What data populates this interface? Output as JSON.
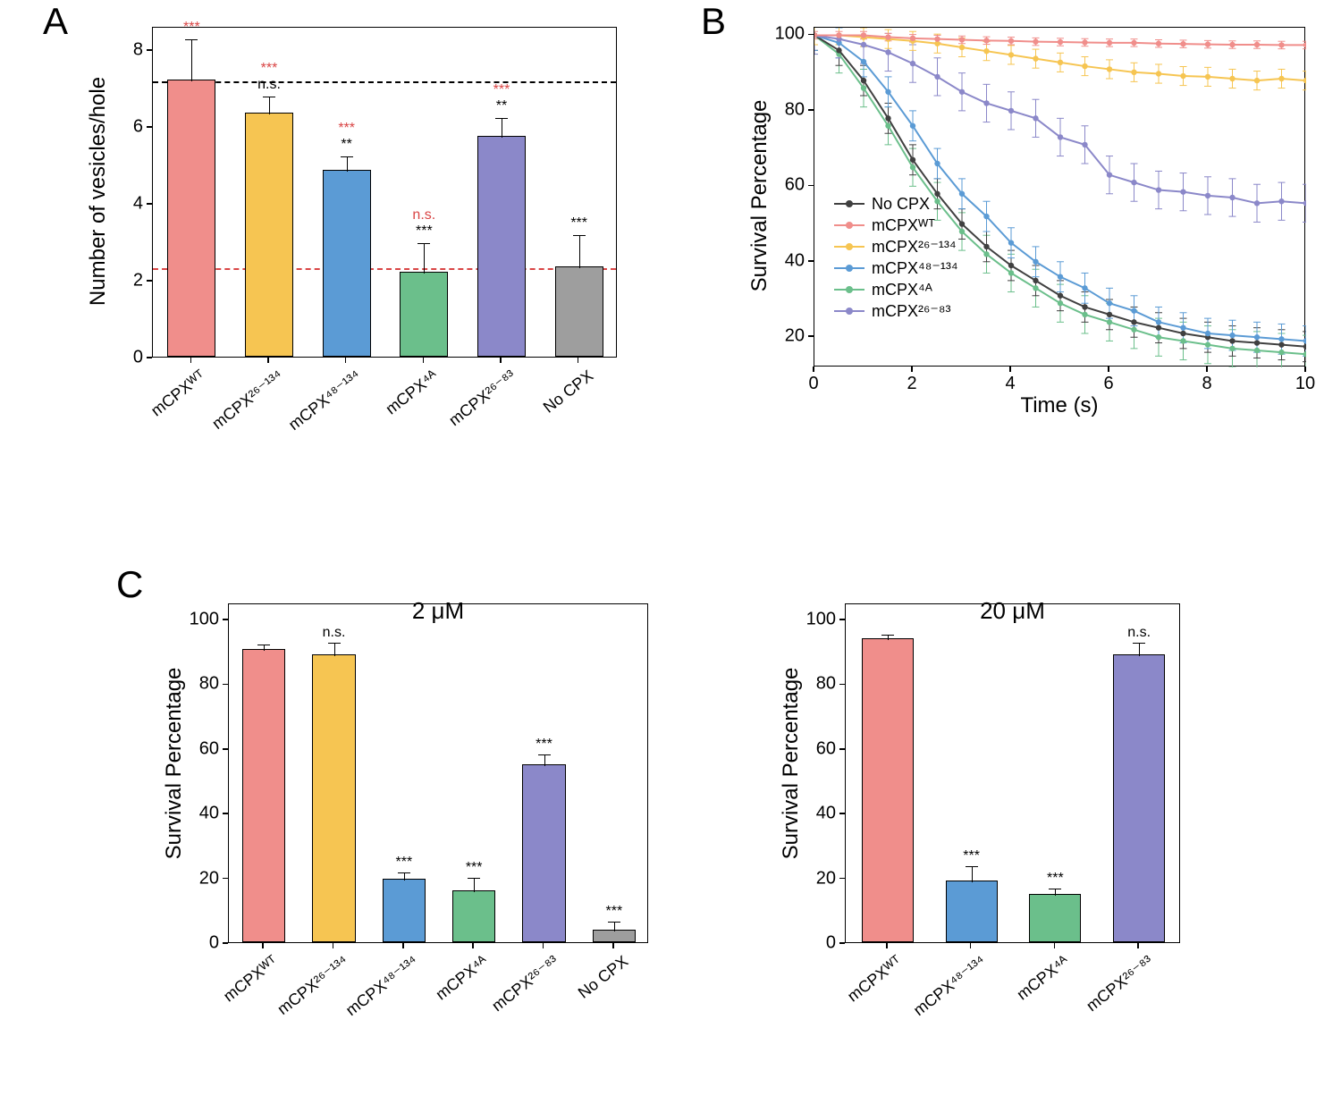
{
  "colors": {
    "WT": "#f08e8b",
    "c26_134": "#f6c552",
    "c48_134": "#5b9bd5",
    "c4A": "#6bbf8b",
    "c26_83": "#8b88c9",
    "NoCPX": "#9e9e9e",
    "NoCPX_line": "#404040",
    "axis": "#000000",
    "dash_black": "#000000",
    "dash_red": "#d94545",
    "sig_red": "#d94545",
    "sig_black": "#000000",
    "bg": "#ffffff"
  },
  "labels": {
    "WT": "mCPXᵂᵀ",
    "c26_134": "mCPX²⁶⁻¹³⁴",
    "c48_134": "mCPX⁴⁸⁻¹³⁴",
    "c4A": "mCPX⁴ᴬ",
    "c26_83": "mCPX²⁶⁻⁸³",
    "NoCPX": "No CPX"
  },
  "panelA": {
    "label": "A",
    "ylabel": "Number of vesicles/hole",
    "ylim": [
      0,
      8.6
    ],
    "yticks": [
      0,
      2,
      4,
      6,
      8
    ],
    "dash_black_at": 7.2,
    "dash_red_at": 2.35,
    "bars": [
      {
        "key": "WT",
        "value": 7.2,
        "err": 1.1,
        "sig_red": "***",
        "sig_black": ""
      },
      {
        "key": "c26_134",
        "value": 6.35,
        "err": 0.45,
        "sig_red": "***",
        "sig_black": "n.s."
      },
      {
        "key": "c48_134",
        "value": 4.85,
        "err": 0.4,
        "sig_red": "***",
        "sig_black": "**"
      },
      {
        "key": "c4A",
        "value": 2.2,
        "err": 0.8,
        "sig_red": "n.s.",
        "sig_black": "***"
      },
      {
        "key": "c26_83",
        "value": 5.75,
        "err": 0.5,
        "sig_red": "***",
        "sig_black": "**"
      },
      {
        "key": "NoCPX",
        "value": 2.35,
        "err": 0.85,
        "sig_red": "",
        "sig_black": "***"
      }
    ]
  },
  "panelB": {
    "label": "B",
    "xlabel": "Time (s)",
    "ylabel": "Survival Percentage",
    "xlim": [
      0,
      10
    ],
    "ylim": [
      12,
      102
    ],
    "xticks": [
      0,
      2,
      4,
      6,
      8,
      10
    ],
    "yticks": [
      20,
      40,
      60,
      80,
      100
    ],
    "legend_order": [
      "NoCPX",
      "WT",
      "c26_134",
      "c48_134",
      "c4A",
      "c26_83"
    ],
    "series": {
      "WT": {
        "color_key": "WT",
        "err": 1.0,
        "points": [
          [
            0,
            100
          ],
          [
            0.5,
            100
          ],
          [
            1,
            100
          ],
          [
            1.5,
            99.5
          ],
          [
            2,
            99.2
          ],
          [
            2.5,
            99.0
          ],
          [
            3,
            98.8
          ],
          [
            3.5,
            98.6
          ],
          [
            4,
            98.5
          ],
          [
            4.5,
            98.3
          ],
          [
            5,
            98.2
          ],
          [
            5.5,
            98.1
          ],
          [
            6,
            98.0
          ],
          [
            6.5,
            98.0
          ],
          [
            7,
            97.8
          ],
          [
            7.5,
            97.7
          ],
          [
            8,
            97.6
          ],
          [
            8.5,
            97.5
          ],
          [
            9,
            97.5
          ],
          [
            9.5,
            97.4
          ],
          [
            10,
            97.4
          ]
        ]
      },
      "c26_134": {
        "color_key": "c26_134",
        "err": 2.5,
        "points": [
          [
            0,
            100
          ],
          [
            0.5,
            100
          ],
          [
            1,
            99.5
          ],
          [
            1.5,
            99.0
          ],
          [
            2,
            98.5
          ],
          [
            2.5,
            97.8
          ],
          [
            3,
            96.8
          ],
          [
            3.5,
            95.8
          ],
          [
            4,
            94.8
          ],
          [
            4.5,
            93.8
          ],
          [
            5,
            92.8
          ],
          [
            5.5,
            91.8
          ],
          [
            6,
            91.0
          ],
          [
            6.5,
            90.2
          ],
          [
            7,
            89.8
          ],
          [
            7.5,
            89.2
          ],
          [
            8,
            89.0
          ],
          [
            8.5,
            88.5
          ],
          [
            9,
            88.0
          ],
          [
            9.5,
            88.5
          ],
          [
            10,
            88.0
          ]
        ]
      },
      "c26_83": {
        "color_key": "c26_83",
        "err": 5.0,
        "points": [
          [
            0,
            100
          ],
          [
            0.5,
            99
          ],
          [
            1,
            97.5
          ],
          [
            1.5,
            95.5
          ],
          [
            2,
            92.5
          ],
          [
            2.5,
            89.0
          ],
          [
            3,
            85.0
          ],
          [
            3.5,
            82.0
          ],
          [
            4,
            80.0
          ],
          [
            4.5,
            78.0
          ],
          [
            5,
            73.0
          ],
          [
            5.5,
            71.0
          ],
          [
            6,
            63.0
          ],
          [
            6.5,
            61.0
          ],
          [
            7,
            59.0
          ],
          [
            7.5,
            58.5
          ],
          [
            8,
            57.5
          ],
          [
            8.5,
            57.0
          ],
          [
            9,
            55.5
          ],
          [
            9.5,
            56.0
          ],
          [
            10,
            55.5
          ]
        ]
      },
      "c48_134": {
        "color_key": "c48_134",
        "err": 4.0,
        "points": [
          [
            0,
            100
          ],
          [
            0.5,
            98
          ],
          [
            1,
            93
          ],
          [
            1.5,
            85
          ],
          [
            2,
            76
          ],
          [
            2.5,
            66
          ],
          [
            3,
            58
          ],
          [
            3.5,
            52
          ],
          [
            4,
            45
          ],
          [
            4.5,
            40
          ],
          [
            5,
            36
          ],
          [
            5.5,
            33
          ],
          [
            6,
            29
          ],
          [
            6.5,
            27
          ],
          [
            7,
            24
          ],
          [
            7.5,
            22.5
          ],
          [
            8,
            21
          ],
          [
            8.5,
            20.5
          ],
          [
            9,
            20
          ],
          [
            9.5,
            19.5
          ],
          [
            10,
            19
          ]
        ]
      },
      "NoCPX": {
        "color_key": "NoCPX_line",
        "err": 4.0,
        "points": [
          [
            0,
            100
          ],
          [
            0.5,
            96
          ],
          [
            1,
            88
          ],
          [
            1.5,
            78
          ],
          [
            2,
            67
          ],
          [
            2.5,
            58
          ],
          [
            3,
            50
          ],
          [
            3.5,
            44
          ],
          [
            4,
            39
          ],
          [
            4.5,
            35
          ],
          [
            5,
            31
          ],
          [
            5.5,
            28
          ],
          [
            6,
            26
          ],
          [
            6.5,
            24
          ],
          [
            7,
            22.5
          ],
          [
            7.5,
            21
          ],
          [
            8,
            20
          ],
          [
            8.5,
            19
          ],
          [
            9,
            18.5
          ],
          [
            9.5,
            18
          ],
          [
            10,
            17.5
          ]
        ]
      },
      "c4A": {
        "color_key": "c4A",
        "err": 5.0,
        "points": [
          [
            0,
            100
          ],
          [
            0.5,
            95
          ],
          [
            1,
            86
          ],
          [
            1.5,
            76
          ],
          [
            2,
            65
          ],
          [
            2.5,
            56
          ],
          [
            3,
            48
          ],
          [
            3.5,
            42
          ],
          [
            4,
            37
          ],
          [
            4.5,
            33
          ],
          [
            5,
            29
          ],
          [
            5.5,
            26
          ],
          [
            6,
            24
          ],
          [
            6.5,
            22
          ],
          [
            7,
            20
          ],
          [
            7.5,
            19
          ],
          [
            8,
            18
          ],
          [
            8.5,
            17
          ],
          [
            9,
            16.5
          ],
          [
            9.5,
            16
          ],
          [
            10,
            15.5
          ]
        ]
      }
    }
  },
  "panelC": {
    "label": "C",
    "ylabel": "Survival Percentage",
    "left": {
      "title": "2 μM",
      "ylim": [
        0,
        105
      ],
      "yticks": [
        0,
        20,
        40,
        60,
        80,
        100
      ],
      "bars": [
        {
          "key": "WT",
          "value": 90.5,
          "err": 2.0,
          "sig": ""
        },
        {
          "key": "c26_134",
          "value": 89.0,
          "err": 4.0,
          "sig": "n.s."
        },
        {
          "key": "c48_134",
          "value": 19.5,
          "err": 2.5,
          "sig": "***"
        },
        {
          "key": "c4A",
          "value": 16.0,
          "err": 4.5,
          "sig": "***"
        },
        {
          "key": "c26_83",
          "value": 55.0,
          "err": 3.5,
          "sig": "***"
        },
        {
          "key": "NoCPX",
          "value": 4.0,
          "err": 3.0,
          "sig": "***"
        }
      ]
    },
    "right": {
      "title": "20 μM",
      "ylim": [
        0,
        105
      ],
      "yticks": [
        0,
        20,
        40,
        60,
        80,
        100
      ],
      "bars": [
        {
          "key": "WT",
          "value": 94.0,
          "err": 1.5,
          "sig": ""
        },
        {
          "key": "c48_134",
          "value": 19.0,
          "err": 5.0,
          "sig": "***"
        },
        {
          "key": "c4A",
          "value": 15.0,
          "err": 2.0,
          "sig": "***"
        },
        {
          "key": "c26_83",
          "value": 89.0,
          "err": 4.0,
          "sig": "n.s."
        }
      ]
    }
  },
  "fonts": {
    "panel_label": 42,
    "axis_title": 24,
    "tick_label": 20,
    "cat_label": 18,
    "annot": 16,
    "legend": 18,
    "conc_title": 26
  }
}
